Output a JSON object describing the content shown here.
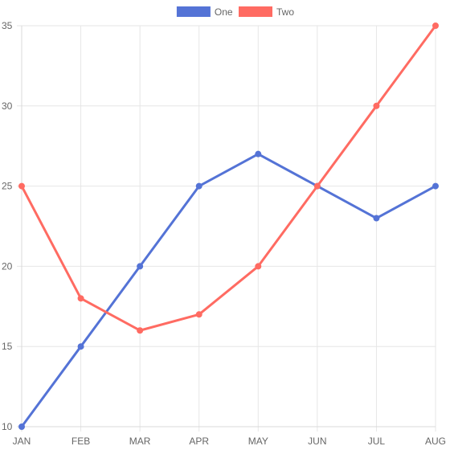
{
  "chart_data": {
    "type": "line",
    "categories": [
      "JAN",
      "FEB",
      "MAR",
      "APR",
      "MAY",
      "JUN",
      "JUL",
      "AUG"
    ],
    "series": [
      {
        "name": "One",
        "color": "#5473d6",
        "values": [
          10,
          15,
          20,
          25,
          27,
          25,
          23,
          25
        ]
      },
      {
        "name": "Two",
        "color": "#ff6b62",
        "values": [
          25,
          18,
          16,
          17,
          20,
          25,
          30,
          35
        ]
      }
    ],
    "ylim": [
      10,
      35
    ],
    "yticks": [
      10,
      15,
      20,
      25,
      30,
      35
    ],
    "grid": true,
    "legend": "top-center",
    "title": "",
    "xlabel": "",
    "ylabel": ""
  }
}
